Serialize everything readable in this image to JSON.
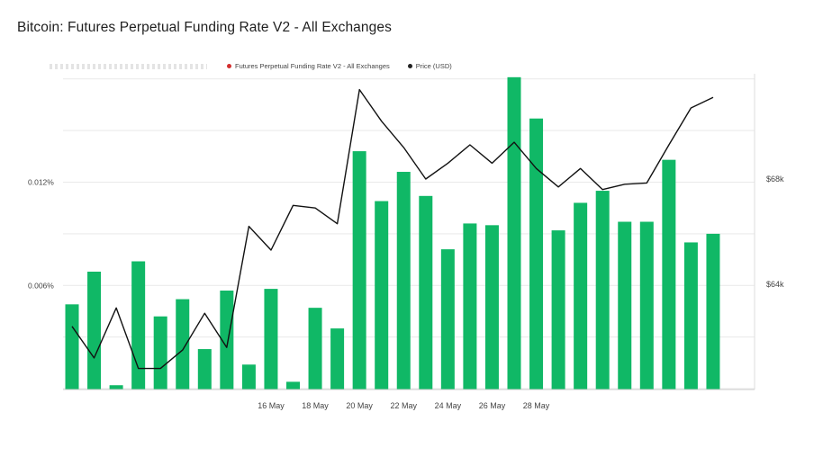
{
  "title": "Bitcoin: Futures Perpetual Funding Rate V2 - All Exchanges",
  "legend": {
    "funding_label": "Futures Perpetual Funding Rate V2 - All Exchanges",
    "price_label": "Price (USD)"
  },
  "colors": {
    "bar": "#10b866",
    "price_line": "#111111",
    "funding_dot": "#d32f2f",
    "price_dot": "#222222",
    "grid": "#e9e9e9"
  },
  "chart_data": {
    "type": "bar",
    "title": "Bitcoin: Futures Perpetual Funding Rate V2 - All Exchanges",
    "legend_position": "top",
    "grid": true,
    "y_left": {
      "ticks": [
        {
          "value": 0.006,
          "label": "0.006%"
        },
        {
          "value": 0.012,
          "label": "0.012%"
        }
      ],
      "range": [
        -5e-05,
        0.0183
      ]
    },
    "y_right": {
      "ticks": [
        {
          "value": 64000,
          "label": "$64k"
        },
        {
          "value": 68000,
          "label": "$68k"
        }
      ],
      "range": [
        60000,
        72000
      ]
    },
    "x_labels": [
      {
        "index": 9,
        "label": "16 May"
      },
      {
        "index": 11,
        "label": "18 May"
      },
      {
        "index": 13,
        "label": "20 May"
      },
      {
        "index": 15,
        "label": "22 May"
      },
      {
        "index": 17,
        "label": "24 May"
      },
      {
        "index": 19,
        "label": "26 May"
      },
      {
        "index": 21,
        "label": "28 May"
      }
    ],
    "series": [
      {
        "name": "Futures Perpetual Funding Rate V2 - All Exchanges",
        "kind": "bar",
        "axis": "left",
        "values": [
          0.0049,
          0.0068,
          0.0002,
          0.0074,
          0.0042,
          0.0052,
          0.0023,
          0.0057,
          0.0014,
          0.0058,
          0.0004,
          0.0047,
          0.0035,
          0.0138,
          0.0109,
          0.0126,
          0.0112,
          0.0081,
          0.0096,
          0.0095,
          0.0181,
          0.0157,
          0.0092,
          0.0108,
          0.0115,
          0.0097,
          0.0097,
          0.0133,
          0.0085,
          0.009
        ]
      },
      {
        "name": "Price (USD)",
        "kind": "line",
        "axis": "right",
        "values": [
          62400,
          61200,
          63100,
          60800,
          60800,
          61500,
          62900,
          61600,
          66200,
          65300,
          67000,
          66900,
          66300,
          71400,
          70200,
          69200,
          68000,
          68600,
          69300,
          68600,
          69400,
          68400,
          67700,
          68400,
          67600,
          67800,
          67850,
          69300,
          70700,
          71100
        ]
      }
    ]
  }
}
